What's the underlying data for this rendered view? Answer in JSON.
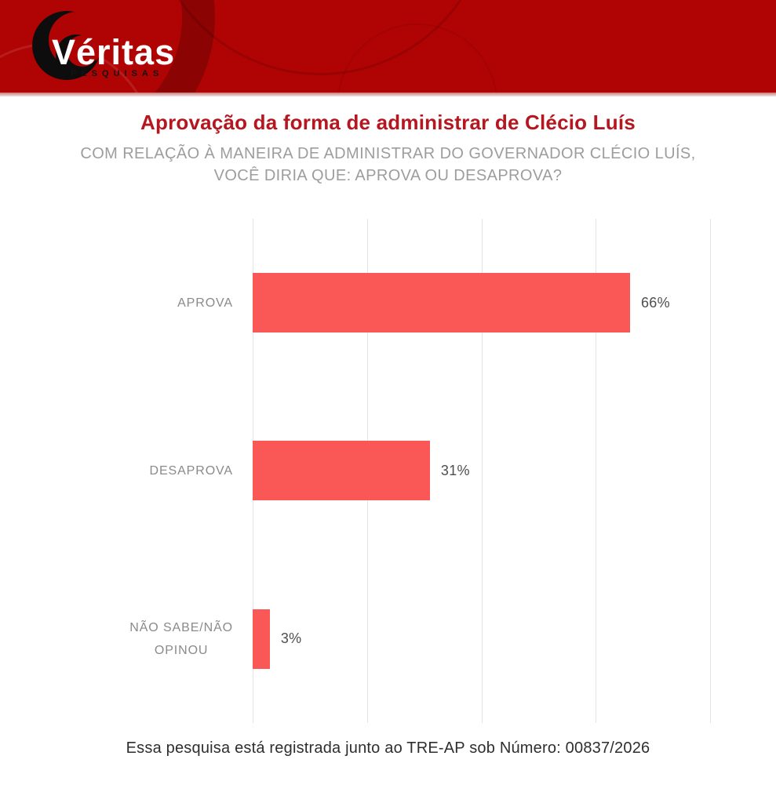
{
  "brand": {
    "name": "Véritas",
    "tagline": "PESQUISAS"
  },
  "header": {
    "title": "Aprovação da forma de administrar de Clécio Luís",
    "subtitle_line1": "COM RELAÇÃO À MANEIRA DE ADMINISTRAR DO GOVERNADOR CLÉCIO LUÍS,",
    "subtitle_line2": "VOCÊ DIRIA QUE: APROVA  OU DESAPROVA?"
  },
  "chart_data": {
    "type": "bar",
    "orientation": "horizontal",
    "title": "Aprovação da forma de administrar de Clécio Luís",
    "categories": [
      "APROVA",
      "DESAPROVA",
      "NÃO SABE/NÃO OPINOU"
    ],
    "category_lines": [
      [
        "APROVA"
      ],
      [
        "DESAPROVA"
      ],
      [
        "NÃO SABE/NÃO",
        "OPINOU"
      ]
    ],
    "values": [
      66,
      31,
      3
    ],
    "value_labels": [
      "66%",
      "31%",
      "3%"
    ],
    "xlim": [
      0,
      80
    ],
    "gridlines_percent": [
      0,
      20,
      40,
      60,
      80
    ],
    "grid": true,
    "legend": false,
    "bar_color": "#fa5757"
  },
  "footer": {
    "registration": "Essa pesquisa está registrada junto ao TRE-AP sob Número: 00837/2026"
  },
  "colors": {
    "banner": "#b00404",
    "banner_strip": "#e9bcbc",
    "logo_mark": "#0d0d0d",
    "brand_text": "#ffffff",
    "tagline_text": "#141414",
    "title": "#b5161f",
    "subtitle": "#9d9d9d",
    "category_label": "#8a8a8a",
    "value_label": "#4e4e4e",
    "gridline": "#e4e4e4",
    "bar": "#fa5757",
    "footer_text": "#2e2e2e",
    "background": "#ffffff"
  }
}
